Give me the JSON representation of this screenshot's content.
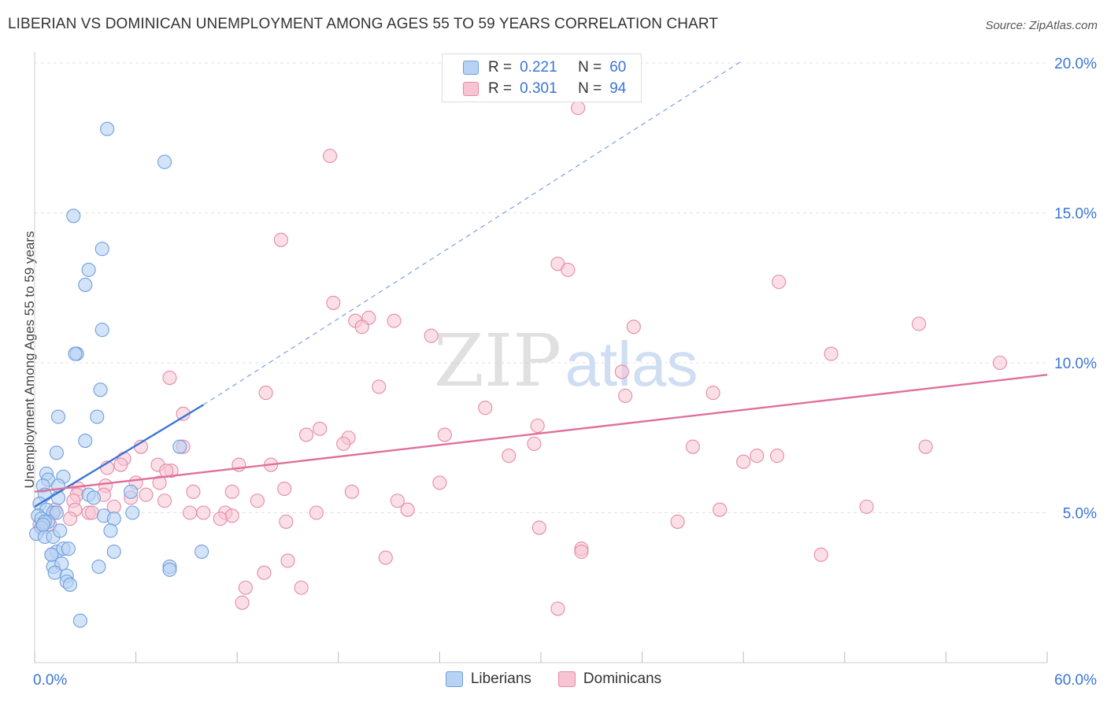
{
  "header": {
    "title": "LIBERIAN VS DOMINICAN UNEMPLOYMENT AMONG AGES 55 TO 59 YEARS CORRELATION CHART",
    "source": "Source: ZipAtlas.com"
  },
  "watermark": {
    "part1": "ZIP",
    "part2": "atlas"
  },
  "legend": {
    "rows": [
      {
        "r_label": "R =",
        "r_value": "0.221",
        "n_label": "N =",
        "n_value": "60"
      },
      {
        "r_label": "R =",
        "r_value": "0.301",
        "n_label": "N =",
        "n_value": "94"
      }
    ]
  },
  "bottom_legend": {
    "liberians": "Liberians",
    "dominicans": "Dominicans"
  },
  "colors": {
    "liberians_fill": "#b8d2f4",
    "liberians_stroke": "#6f9fde",
    "liberians_line": "#3b74d6",
    "dominicans_fill": "#f8c4d4",
    "dominicans_stroke": "#e58aa8",
    "dominicans_line": "#e0709a",
    "tick_label": "#3b74d6",
    "grid": "#e3e3e3"
  },
  "chart_data": {
    "type": "scatter",
    "title": "LIBERIAN VS DOMINICAN UNEMPLOYMENT AMONG AGES 55 TO 59 YEARS CORRELATION CHART",
    "xlabel": "",
    "ylabel": "Unemployment Among Ages 55 to 59 years",
    "xlim": [
      0,
      60
    ],
    "ylim": [
      0,
      20
    ],
    "x_tick_labels": [
      "0.0%",
      "60.0%"
    ],
    "y_ticks": [
      5,
      10,
      15,
      20
    ],
    "y_tick_labels": [
      "5.0%",
      "10.0%",
      "15.0%",
      "20.0%"
    ],
    "grid": true,
    "legend_position": "top-center",
    "series": [
      {
        "name": "Liberians",
        "r": 0.221,
        "n": 60,
        "trend": {
          "x": [
            0,
            10
          ],
          "y": [
            5.2,
            8.6
          ],
          "dashed_extension_to": [
            42,
            20.1
          ]
        },
        "points": [
          [
            4.3,
            17.8
          ],
          [
            7.7,
            16.7
          ],
          [
            2.3,
            14.9
          ],
          [
            4.0,
            13.8
          ],
          [
            3.2,
            13.1
          ],
          [
            3.0,
            12.6
          ],
          [
            4.0,
            11.1
          ],
          [
            2.5,
            10.3
          ],
          [
            3.9,
            9.1
          ],
          [
            1.4,
            8.2
          ],
          [
            3.7,
            8.2
          ],
          [
            3.0,
            7.4
          ],
          [
            8.6,
            7.2
          ],
          [
            1.3,
            7.0
          ],
          [
            0.7,
            6.3
          ],
          [
            1.7,
            6.2
          ],
          [
            0.8,
            6.1
          ],
          [
            0.5,
            5.9
          ],
          [
            0.6,
            5.6
          ],
          [
            1.4,
            5.5
          ],
          [
            3.2,
            5.6
          ],
          [
            3.5,
            5.5
          ],
          [
            5.7,
            5.7
          ],
          [
            0.3,
            5.3
          ],
          [
            0.7,
            5.1
          ],
          [
            1.1,
            5.0
          ],
          [
            1.3,
            5.0
          ],
          [
            0.2,
            4.9
          ],
          [
            0.4,
            4.8
          ],
          [
            0.8,
            4.7
          ],
          [
            0.6,
            4.7
          ],
          [
            4.1,
            4.9
          ],
          [
            4.7,
            4.8
          ],
          [
            5.8,
            5.0
          ],
          [
            0.4,
            4.5
          ],
          [
            0.1,
            4.3
          ],
          [
            0.6,
            4.2
          ],
          [
            1.1,
            4.2
          ],
          [
            1.5,
            4.4
          ],
          [
            4.5,
            4.4
          ],
          [
            1.3,
            3.7
          ],
          [
            1.0,
            3.6
          ],
          [
            1.7,
            3.8
          ],
          [
            2.0,
            3.8
          ],
          [
            4.7,
            3.7
          ],
          [
            9.9,
            3.7
          ],
          [
            1.1,
            3.2
          ],
          [
            1.6,
            3.3
          ],
          [
            3.8,
            3.2
          ],
          [
            8.0,
            3.2
          ],
          [
            8.0,
            3.1
          ],
          [
            1.2,
            3.0
          ],
          [
            1.9,
            2.9
          ],
          [
            1.9,
            2.7
          ],
          [
            2.1,
            2.6
          ],
          [
            2.7,
            1.4
          ],
          [
            1.0,
            3.6
          ],
          [
            0.5,
            4.6
          ],
          [
            2.4,
            10.3
          ],
          [
            1.4,
            5.9
          ]
        ]
      },
      {
        "name": "Dominicans",
        "r": 0.301,
        "n": 94,
        "trend": {
          "x": [
            0,
            60
          ],
          "y": [
            5.7,
            9.6
          ]
        },
        "points": [
          [
            32.2,
            18.5
          ],
          [
            17.5,
            16.9
          ],
          [
            14.6,
            14.1
          ],
          [
            31.0,
            13.3
          ],
          [
            31.6,
            13.1
          ],
          [
            44.1,
            12.7
          ],
          [
            17.7,
            12.0
          ],
          [
            19.0,
            11.4
          ],
          [
            19.8,
            11.5
          ],
          [
            21.3,
            11.4
          ],
          [
            19.4,
            11.2
          ],
          [
            35.5,
            11.2
          ],
          [
            52.4,
            11.3
          ],
          [
            23.5,
            10.9
          ],
          [
            47.2,
            10.3
          ],
          [
            57.2,
            10.0
          ],
          [
            8.0,
            9.5
          ],
          [
            34.8,
            9.7
          ],
          [
            20.4,
            9.2
          ],
          [
            13.7,
            9.0
          ],
          [
            40.2,
            9.0
          ],
          [
            35.0,
            8.9
          ],
          [
            8.8,
            8.3
          ],
          [
            26.7,
            8.5
          ],
          [
            29.8,
            7.9
          ],
          [
            16.9,
            7.8
          ],
          [
            24.3,
            7.6
          ],
          [
            16.1,
            7.6
          ],
          [
            18.6,
            7.5
          ],
          [
            18.3,
            7.3
          ],
          [
            29.6,
            7.3
          ],
          [
            6.3,
            7.2
          ],
          [
            8.8,
            7.2
          ],
          [
            39.0,
            7.2
          ],
          [
            52.8,
            7.2
          ],
          [
            28.1,
            6.9
          ],
          [
            42.8,
            6.9
          ],
          [
            44.0,
            6.9
          ],
          [
            5.3,
            6.8
          ],
          [
            42.0,
            6.7
          ],
          [
            14.0,
            6.6
          ],
          [
            5.1,
            6.6
          ],
          [
            7.3,
            6.6
          ],
          [
            12.1,
            6.6
          ],
          [
            8.1,
            6.4
          ],
          [
            7.8,
            6.4
          ],
          [
            4.3,
            6.5
          ],
          [
            6.0,
            6.0
          ],
          [
            7.4,
            6.0
          ],
          [
            24.0,
            6.0
          ],
          [
            2.6,
            5.8
          ],
          [
            4.2,
            5.9
          ],
          [
            14.8,
            5.8
          ],
          [
            9.4,
            5.7
          ],
          [
            11.7,
            5.7
          ],
          [
            18.8,
            5.7
          ],
          [
            6.6,
            5.6
          ],
          [
            2.5,
            5.6
          ],
          [
            4.1,
            5.6
          ],
          [
            2.3,
            5.4
          ],
          [
            5.7,
            5.5
          ],
          [
            7.7,
            5.4
          ],
          [
            13.2,
            5.4
          ],
          [
            21.5,
            5.4
          ],
          [
            4.7,
            5.2
          ],
          [
            22.1,
            5.1
          ],
          [
            40.6,
            5.1
          ],
          [
            49.3,
            5.2
          ],
          [
            1.2,
            5.1
          ],
          [
            2.4,
            5.1
          ],
          [
            3.2,
            5.0
          ],
          [
            3.4,
            5.0
          ],
          [
            9.2,
            5.0
          ],
          [
            10.0,
            5.0
          ],
          [
            11.3,
            5.0
          ],
          [
            11.7,
            4.9
          ],
          [
            16.7,
            5.0
          ],
          [
            2.1,
            4.8
          ],
          [
            11.0,
            4.8
          ],
          [
            14.9,
            4.7
          ],
          [
            38.1,
            4.7
          ],
          [
            0.3,
            4.6
          ],
          [
            29.9,
            4.5
          ],
          [
            32.4,
            3.8
          ],
          [
            32.4,
            3.7
          ],
          [
            20.8,
            3.5
          ],
          [
            46.6,
            3.6
          ],
          [
            15.0,
            3.4
          ],
          [
            13.6,
            3.0
          ],
          [
            12.5,
            2.5
          ],
          [
            15.8,
            2.5
          ],
          [
            12.3,
            2.0
          ],
          [
            31.0,
            1.8
          ],
          [
            0.9,
            4.6
          ]
        ]
      }
    ]
  }
}
